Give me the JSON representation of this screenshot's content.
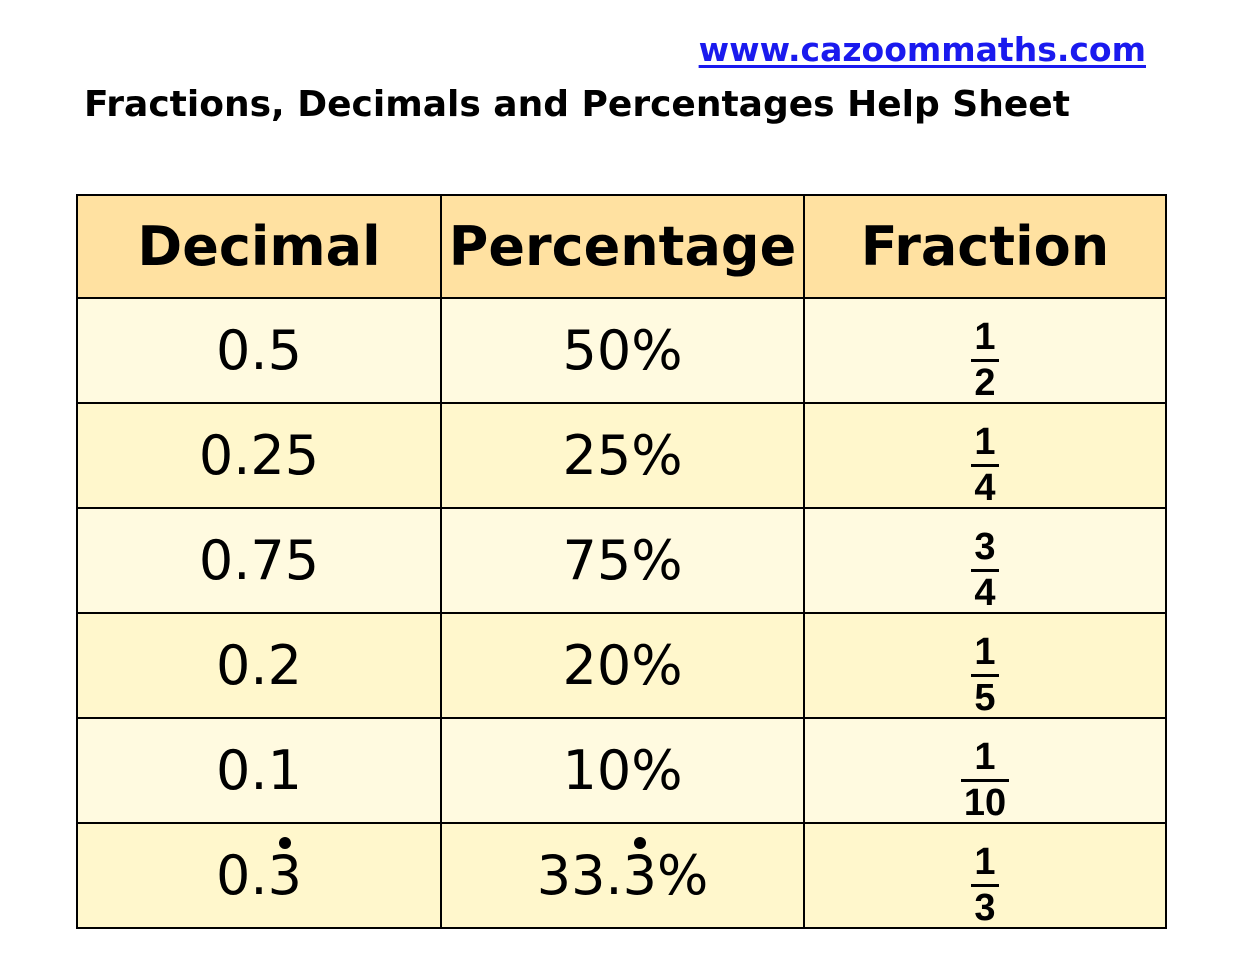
{
  "header": {
    "site_link": "www.cazoommaths.com",
    "title": "Fractions, Decimals and Percentages Help Sheet"
  },
  "table": {
    "columns": [
      "Decimal",
      "Percentage",
      "Fraction"
    ],
    "rows": [
      {
        "decimal": "0.5",
        "percentage": "50%",
        "fraction": {
          "numerator": "1",
          "denominator": "2"
        }
      },
      {
        "decimal": "0.25",
        "percentage": "25%",
        "fraction": {
          "numerator": "1",
          "denominator": "4"
        }
      },
      {
        "decimal": "0.75",
        "percentage": "75%",
        "fraction": {
          "numerator": "3",
          "denominator": "4"
        }
      },
      {
        "decimal": "0.2",
        "percentage": "20%",
        "fraction": {
          "numerator": "1",
          "denominator": "5"
        }
      },
      {
        "decimal": "0.1",
        "percentage": "10%",
        "fraction": {
          "numerator": "1",
          "denominator": "10"
        }
      },
      {
        "decimal": {
          "before": "0.",
          "recurring": "3",
          "after": ""
        },
        "percentage": {
          "before": "33.",
          "recurring": "3",
          "after": "%"
        },
        "fraction": {
          "numerator": "1",
          "denominator": "3"
        }
      }
    ]
  },
  "colors": {
    "header_fill": "#ffe1a1",
    "row_fill_light": "#fffae0",
    "row_fill_alt": "#fff7cc",
    "link": "#1a1aee"
  }
}
